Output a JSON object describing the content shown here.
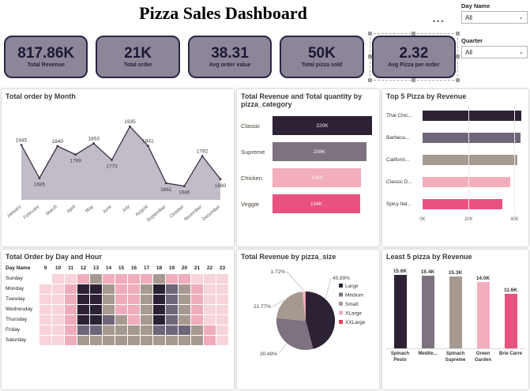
{
  "header": {
    "title": "Pizza Sales Dashboard",
    "more_options": "•••"
  },
  "slicers": {
    "day_name": {
      "label": "Day Name",
      "value": "All"
    },
    "quarter": {
      "label": "Quarter",
      "value": "All"
    }
  },
  "kpis": [
    {
      "value": "817.86K",
      "label": "Total Revenue"
    },
    {
      "value": "21K",
      "label": "Total order"
    },
    {
      "value": "38.31",
      "label": "Avg order value"
    },
    {
      "value": "50K",
      "label": "Total pizza sold"
    },
    {
      "value": "2.32",
      "label": "Avg Pizza per order"
    }
  ],
  "chart_data": [
    {
      "type": "area",
      "title": "Total order by Month",
      "x": [
        "January",
        "February",
        "March",
        "April",
        "May",
        "June",
        "July",
        "August",
        "September",
        "October",
        "November",
        "December"
      ],
      "values": [
        1845,
        1685,
        1840,
        1799,
        1853,
        1773,
        1935,
        1841,
        1661,
        1646,
        1792,
        1680
      ],
      "label_side": [
        "above",
        "below",
        "above",
        "below",
        "above",
        "below",
        "above",
        "above",
        "below",
        "below",
        "above",
        "below"
      ],
      "ylim": [
        1580,
        1985
      ],
      "line_color": "#3a3144",
      "fill_color": "#c2bcc8"
    },
    {
      "type": "bar",
      "title": "Total Revenue and Total quantity by pizza_category",
      "categories": [
        "Classic",
        "Supreme",
        "Chicken",
        "Veggie"
      ],
      "values": [
        220,
        208,
        196,
        194
      ],
      "value_labels": [
        "220K",
        "208K",
        "196K",
        "194K"
      ],
      "colors": [
        "#2c2234",
        "#7e7280",
        "#f2aebc",
        "#e8527f"
      ]
    },
    {
      "type": "bar",
      "title": "Top 5 Pizza by Revenue",
      "categories": [
        "Thai Chic...",
        "Barbecu...",
        "Californi...",
        "Classic D...",
        "Spicy Ital..."
      ],
      "values": [
        43,
        42.6,
        41.4,
        38.2,
        34.6
      ],
      "colors": [
        "#2c2234",
        "#6f6579",
        "#a69a90",
        "#f2aebc",
        "#e8527f"
      ],
      "xticks": [
        "0K",
        "20K",
        "40K"
      ],
      "xtick_values": [
        0,
        20,
        40
      ],
      "xlim": [
        0,
        44
      ]
    },
    {
      "type": "heatmap",
      "title": "Total Order by Day and Hour",
      "corner_label": "Day Name",
      "columns": [
        "9",
        "10",
        "11",
        "12",
        "13",
        "14",
        "15",
        "16",
        "17",
        "18",
        "19",
        "20",
        "21",
        "22",
        "23"
      ],
      "rows": [
        "Sunday",
        "Monday",
        "Tuesday",
        "Wednesday",
        "Thursday",
        "Friday",
        "Saturday"
      ],
      "values": [
        [
          0,
          1,
          1,
          2,
          3,
          2,
          2,
          2,
          2,
          3,
          2,
          2,
          1,
          1,
          1
        ],
        [
          1,
          1,
          2,
          5,
          5,
          3,
          2,
          2,
          3,
          5,
          4,
          3,
          2,
          1,
          1
        ],
        [
          1,
          1,
          2,
          5,
          5,
          3,
          2,
          2,
          3,
          5,
          4,
          3,
          2,
          1,
          1
        ],
        [
          1,
          1,
          2,
          5,
          5,
          3,
          2,
          2,
          3,
          5,
          4,
          3,
          2,
          1,
          1
        ],
        [
          1,
          1,
          2,
          5,
          5,
          4,
          3,
          2,
          3,
          5,
          4,
          3,
          2,
          1,
          1
        ],
        [
          1,
          1,
          2,
          4,
          4,
          3,
          3,
          3,
          3,
          4,
          4,
          4,
          3,
          2,
          1
        ],
        [
          1,
          1,
          2,
          3,
          3,
          3,
          3,
          3,
          3,
          3,
          3,
          3,
          3,
          2,
          1
        ]
      ],
      "palette": [
        "#ffffff",
        "#f7d4da",
        "#efadbb",
        "#a69a90",
        "#6f6579",
        "#2c2234"
      ]
    },
    {
      "type": "pie",
      "title": "Total Revenue by pizza_size",
      "labels": [
        "Large",
        "Medium",
        "Small",
        "XLarge",
        "XXLarge"
      ],
      "values": [
        45.89,
        30.49,
        21.77,
        1.72,
        0.13
      ],
      "pct_labels": [
        "45.89%",
        "30.49%",
        "21.77%",
        "1.72%",
        ""
      ],
      "colors": [
        "#2c2234",
        "#7e7280",
        "#a69a90",
        "#f2aebc",
        "#e8435f"
      ],
      "legend_position": "right"
    },
    {
      "type": "column",
      "title": "Least 5 pizza by Revenue",
      "categories": [
        "Spinach Pesto",
        "Medite...",
        "Spinach Supreme",
        "Green Garden",
        "Brie Carre"
      ],
      "values": [
        15.6,
        15.4,
        15.3,
        14.0,
        11.6
      ],
      "value_labels": [
        "15.6K",
        "15.4K",
        "15.3K",
        "14.0K",
        "11.6K"
      ],
      "colors": [
        "#2c2234",
        "#7e7280",
        "#a69a90",
        "#f2aebc",
        "#e8527f"
      ],
      "ylim": [
        0,
        16
      ]
    }
  ]
}
